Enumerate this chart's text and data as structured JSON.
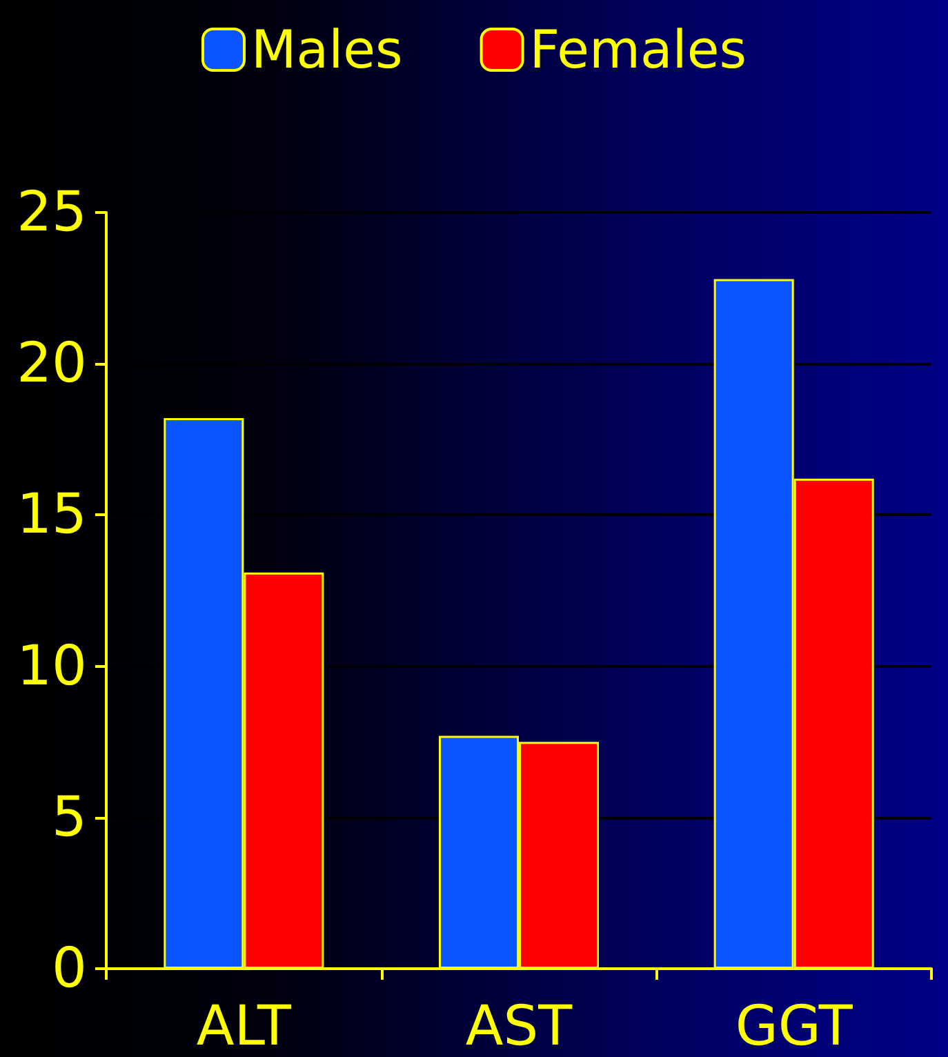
{
  "chart_data": {
    "type": "bar",
    "categories": [
      "ALT",
      "AST",
      "GGT"
    ],
    "series": [
      {
        "name": "Males",
        "color": "#0a55ff",
        "values": [
          18.2,
          7.7,
          22.8
        ]
      },
      {
        "name": "Females",
        "color": "#ff0000",
        "values": [
          13.1,
          7.5,
          16.2
        ]
      }
    ],
    "ylim": [
      0,
      25
    ],
    "yticks": [
      0,
      5,
      10,
      15,
      20,
      25
    ],
    "grid": "y",
    "legend": "top"
  }
}
